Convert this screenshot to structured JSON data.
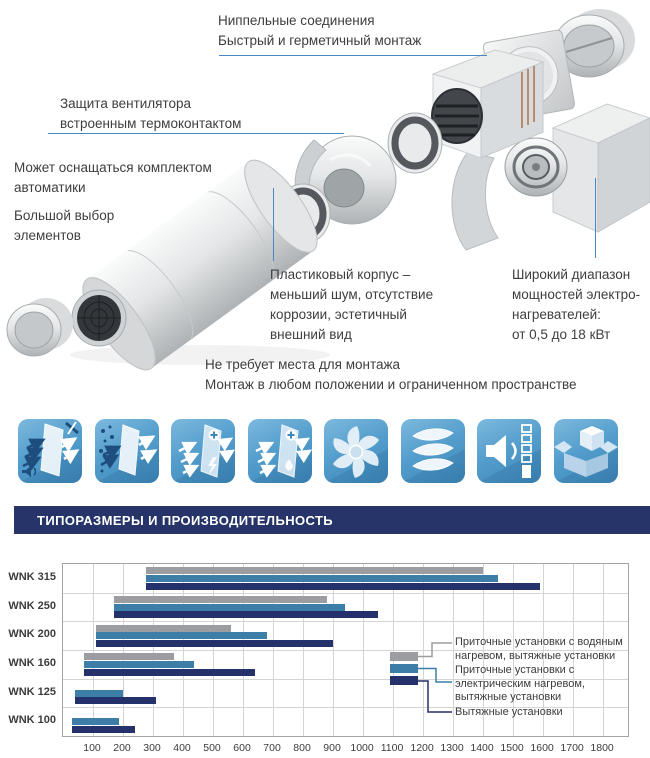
{
  "callouts": {
    "nipple": {
      "text": "Ниппельные соединения\nБыстрый и герметичный монтаж"
    },
    "fan_protection": {
      "text": "Защита вентилятора\nвстроенным термоконтактом"
    },
    "automation": {
      "text": "Может оснащаться комплектом\nавтоматики"
    },
    "wide_choice": {
      "text": "Большой выбор\nэлементов"
    },
    "plastic_case": {
      "text": "Пластиковый корпус –\nменьший шум, отсутствие\nкоррозии, эстетичный\nвнешний вид"
    },
    "heater_range": {
      "text": "Широкий диапазон\nмощностей электро-\nнагревателей:\nот 0,5 до 18 кВт"
    },
    "mounting": {
      "text": "Не требует места для монтажа\nМонтаж в любом положении и ограниченном пространстве"
    }
  },
  "icons": [
    {
      "name": "silencer-icon"
    },
    {
      "name": "filtration-icon"
    },
    {
      "name": "electric-heating-icon"
    },
    {
      "name": "water-heating-icon"
    },
    {
      "name": "fan-icon"
    },
    {
      "name": "impeller-icon"
    },
    {
      "name": "low-noise-icon"
    },
    {
      "name": "compact-package-icon"
    }
  ],
  "banner": {
    "title": "ТИПОРАЗМЕРЫ И ПРОИЗВОДИТЕЛЬНОСТЬ"
  },
  "colors": {
    "accent_line": "#4a86c4",
    "banner": "#273469",
    "bar_gray": "#9b9da0",
    "bar_blue": "#3d7ea8",
    "bar_navy": "#25316b"
  },
  "chart_data": {
    "type": "bar",
    "orientation": "horizontal",
    "title": "ТИПОРАЗМЕРЫ И ПРОИЗВОДИТЕЛЬНОСТЬ",
    "categories": [
      "WNK 315",
      "WNK 250",
      "WNK 200",
      "WNK 160",
      "WNK 125",
      "WNK 100"
    ],
    "series": [
      {
        "name": "Приточные установки с водяным\nнагревом, вытяжные установки",
        "color": "#9b9da0",
        "ranges": [
          [
            275,
            1400
          ],
          [
            170,
            880
          ],
          [
            110,
            560
          ],
          [
            70,
            370
          ],
          null,
          null
        ]
      },
      {
        "name": "Приточные установки с\nэлектрическим нагревом,\nвытяжные установки",
        "color": "#3d7ea8",
        "ranges": [
          [
            275,
            1450
          ],
          [
            170,
            940
          ],
          [
            110,
            680
          ],
          [
            70,
            435
          ],
          [
            40,
            200
          ],
          [
            30,
            185
          ]
        ]
      },
      {
        "name": "Вытяжные установки",
        "color": "#25316b",
        "ranges": [
          [
            275,
            1590
          ],
          [
            170,
            1050
          ],
          [
            110,
            900
          ],
          [
            70,
            640
          ],
          [
            40,
            310
          ],
          [
            30,
            240
          ]
        ]
      }
    ],
    "x_ticks": [
      100,
      200,
      300,
      400,
      500,
      600,
      700,
      800,
      900,
      1000,
      1100,
      1200,
      1300,
      1400,
      1500,
      1600,
      1700,
      1800
    ],
    "xlim": [
      0,
      1883
    ],
    "xlabel": "",
    "ylabel": "",
    "grid": true,
    "legend_position": "right-inside"
  }
}
